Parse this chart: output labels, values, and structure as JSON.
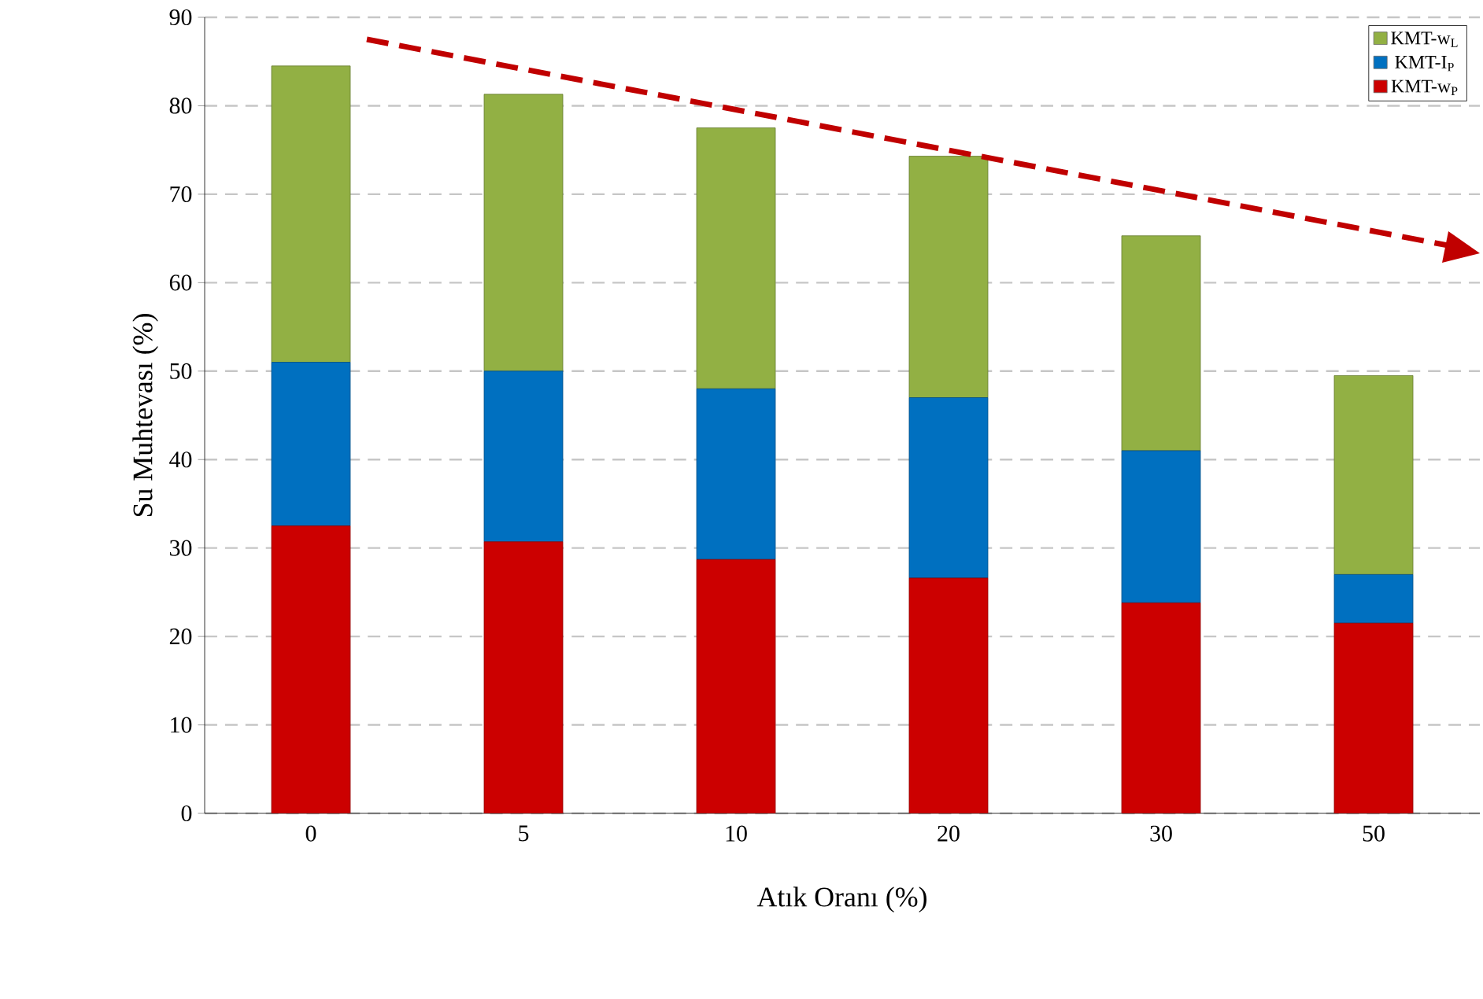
{
  "chart_data": {
    "type": "bar",
    "stacked": true,
    "xlabel": "Atık Oranı (%)",
    "ylabel": "Su Muhtevası (%)",
    "categories": [
      "0",
      "5",
      "10",
      "20",
      "30",
      "50"
    ],
    "series": [
      {
        "name": "KMT-w$_{P}$",
        "color": "#cc0000",
        "values": [
          32.5,
          30.7,
          28.7,
          26.6,
          23.8,
          21.5
        ]
      },
      {
        "name": "KMT-I$_{P}$",
        "color": "#0070c0",
        "values": [
          18.5,
          19.3,
          19.3,
          20.4,
          17.2,
          5.5
        ]
      },
      {
        "name": "KMT-w$_{L}$",
        "color": "#92b044",
        "values": [
          33.5,
          31.3,
          29.5,
          27.3,
          24.3,
          22.5
        ]
      }
    ],
    "ylim": [
      0,
      90
    ],
    "yticks": [
      0,
      10,
      20,
      30,
      40,
      50,
      60,
      70,
      80,
      90
    ],
    "grid": "y",
    "legend": "top right"
  }
}
